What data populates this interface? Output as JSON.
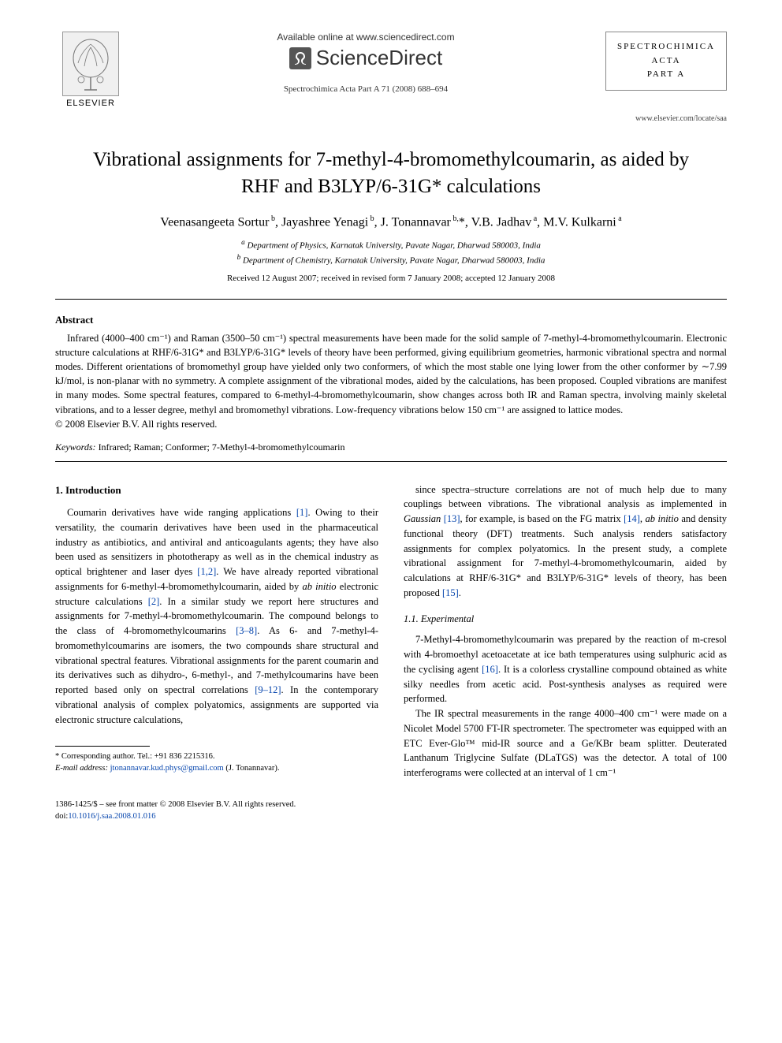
{
  "header": {
    "elsevier_label": "ELSEVIER",
    "available_line": "Available online at www.sciencedirect.com",
    "sciencedirect": "ScienceDirect",
    "journal_ref": "Spectrochimica Acta Part A 71 (2008) 688–694",
    "journal_box_line1": "SPECTROCHIMICA",
    "journal_box_line2": "ACTA",
    "journal_box_line3": "PART A",
    "locate": "www.elsevier.com/locate/saa"
  },
  "title": "Vibrational assignments for 7-methyl-4-bromomethylcoumarin, as aided by RHF and B3LYP/6-31G* calculations",
  "authors_html": "Veenasangeeta Sortur<sup> b</sup>, Jayashree Yenagi<sup> b</sup>, J. Tonannavar<sup> b,</sup>*, V.B. Jadhav<sup> a</sup>, M.V. Kulkarni<sup> a</sup>",
  "affiliations": {
    "a": "Department of Physics, Karnatak University, Pavate Nagar, Dharwad 580003, India",
    "b": "Department of Chemistry, Karnatak University, Pavate Nagar, Dharwad 580003, India"
  },
  "dates": "Received 12 August 2007; received in revised form 7 January 2008; accepted 12 January 2008",
  "abstract": {
    "heading": "Abstract",
    "body": "Infrared (4000–400 cm⁻¹) and Raman (3500–50 cm⁻¹) spectral measurements have been made for the solid sample of 7-methyl-4-bromomethylcoumarin. Electronic structure calculations at RHF/6-31G* and B3LYP/6-31G* levels of theory have been performed, giving equilibrium geometries, harmonic vibrational spectra and normal modes. Different orientations of bromomethyl group have yielded only two conformers, of which the most stable one lying lower from the other conformer by ∼7.99 kJ/mol, is non-planar with no symmetry. A complete assignment of the vibrational modes, aided by the calculations, has been proposed. Coupled vibrations are manifest in many modes. Some spectral features, compared to 6-methyl-4-bromomethylcoumarin, show changes across both IR and Raman spectra, involving mainly skeletal vibrations, and to a lesser degree, methyl and bromomethyl vibrations. Low-frequency vibrations below 150 cm⁻¹ are assigned to lattice modes.",
    "copyright": "© 2008 Elsevier B.V. All rights reserved."
  },
  "keywords": {
    "label": "Keywords:",
    "text": " Infrared; Raman; Conformer; 7-Methyl-4-bromomethylcoumarin"
  },
  "section1": {
    "heading": "1. Introduction",
    "left_para": "Coumarin derivatives have wide ranging applications [1]. Owing to their versatility, the coumarin derivatives have been used in the pharmaceutical industry as antibiotics, and antiviral and anticoagulants agents; they have also been used as sensitizers in phototherapy as well as in the chemical industry as optical brightener and laser dyes [1,2]. We have already reported vibrational assignments for 6-methyl-4-bromomethylcoumarin, aided by ab initio electronic structure calculations [2]. In a similar study we report here structures and assignments for 7-methyl-4-bromomethylcoumarin. The compound belongs to the class of 4-bromomethylcoumarins [3–8]. As 6- and 7-methyl-4-bromomethylcoumarins are isomers, the two compounds share structural and vibrational spectral features. Vibrational assignments for the parent coumarin and its derivatives such as dihydro-, 6-methyl-, and 7-methylcoumarins have been reported based only on spectral correlations [9–12]. In the contemporary vibrational analysis of complex polyatomics, assignments are supported via electronic structure calculations,",
    "right_para1": "since spectra–structure correlations are not of much help due to many couplings between vibrations. The vibrational analysis as implemented in Gaussian [13], for example, is based on the FG matrix [14], ab initio and density functional theory (DFT) treatments. Such analysis renders satisfactory assignments for complex polyatomics. In the present study, a complete vibrational assignment for 7-methyl-4-bromomethylcoumarin, aided by calculations at RHF/6-31G* and B3LYP/6-31G* levels of theory, has been proposed [15].",
    "sub_heading": "1.1. Experimental",
    "right_para2": "7-Methyl-4-bromomethylcoumarin was prepared by the reaction of m-cresol with 4-bromoethyl acetoacetate at ice bath temperatures using sulphuric acid as the cyclising agent [16]. It is a colorless crystalline compound obtained as white silky needles from acetic acid. Post-synthesis analyses as required were performed.",
    "right_para3": "The IR spectral measurements in the range 4000–400 cm⁻¹ were made on a Nicolet Model 5700 FT-IR spectrometer. The spectrometer was equipped with an ETC Ever-Glo™ mid-IR source and a Ge/KBr beam splitter. Deuterated Lanthanum Triglycine Sulfate (DLaTGS) was the detector. A total of 100 interferograms were collected at an interval of 1 cm⁻¹"
  },
  "footnote": {
    "corr": "* Corresponding author. Tel.: +91 836 2215316.",
    "email_label": "E-mail address:",
    "email": "jtonannavar.kud.phys@gmail.com",
    "email_who": " (J. Tonannavar)."
  },
  "footer": {
    "line1": "1386-1425/$ – see front matter © 2008 Elsevier B.V. All rights reserved.",
    "doi": "doi:10.1016/j.saa.2008.01.016"
  },
  "colors": {
    "text": "#000000",
    "link": "#0645ad",
    "bg": "#ffffff",
    "rule": "#000000"
  }
}
